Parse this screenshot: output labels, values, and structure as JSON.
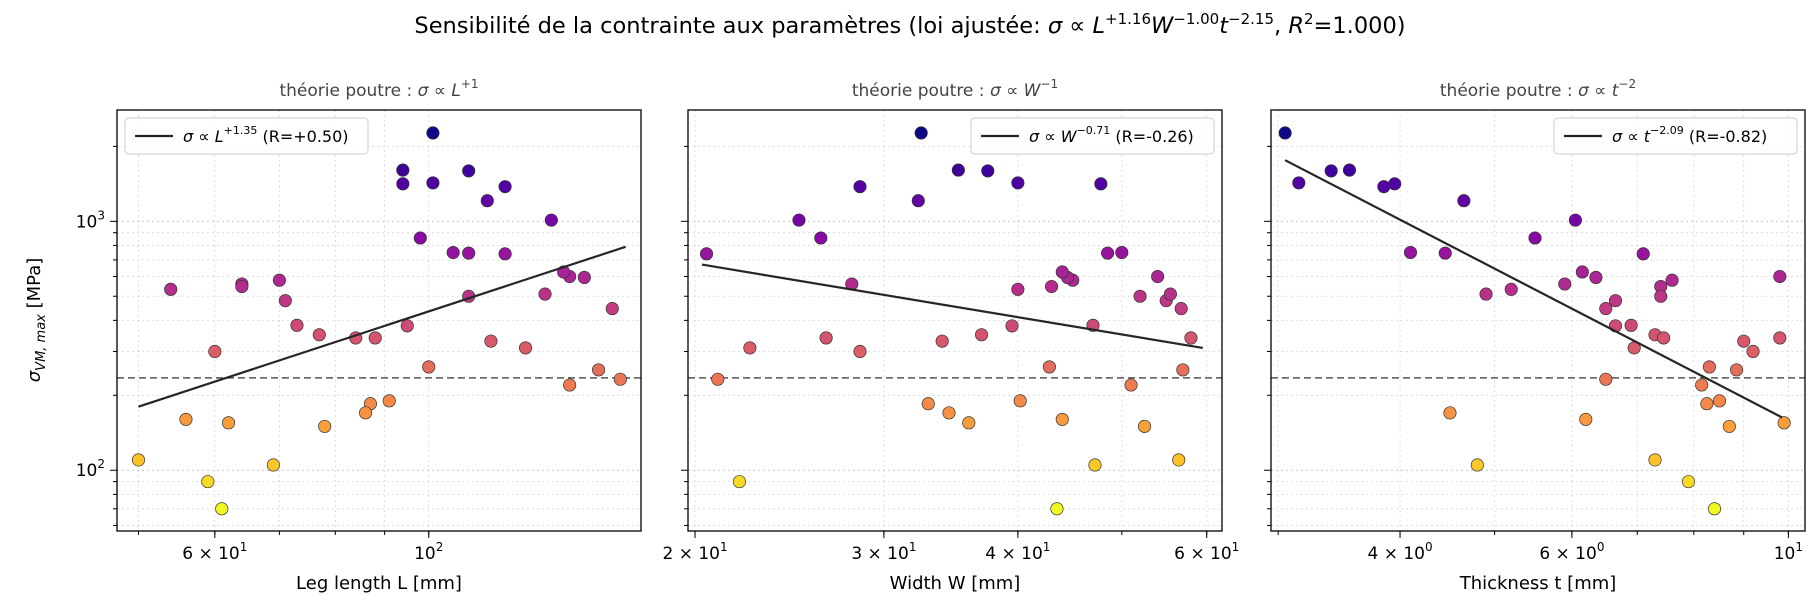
{
  "figure": {
    "suptitle_pre": "Sensibilité de la contrainte aux paramètres   (loi ajustée: ",
    "fit_L_exp": "+1.16",
    "fit_W_exp": "−1.00",
    "fit_t_exp": "−2.15",
    "fit_r2": "=1.000)",
    "ylabel": "σ",
    "ylabel_sub": "VM, max",
    "ylabel_unit": " [MPa]",
    "threshold_mpa": 235,
    "colormap": "plasma",
    "marker_edge": "#333333",
    "fit_line_color": "#262626",
    "threshold_color": "#555555",
    "grid": true,
    "yscale": "log",
    "ylim": [
      57,
      2800
    ],
    "y_ticks": [
      {
        "v": 100,
        "base": "10",
        "exp": "2"
      },
      {
        "v": 1000,
        "base": "10",
        "exp": "3"
      }
    ],
    "sigma_values": [
      2264,
      1606,
      1427,
      1594,
      1414,
      1210,
      1378,
      1011,
      857,
      745,
      740,
      560,
      547,
      533,
      480,
      382,
      300,
      253,
      232,
      220,
      600,
      580,
      500,
      380,
      350,
      340,
      340,
      330,
      310,
      260,
      190,
      185,
      170,
      160,
      155,
      150,
      110,
      105,
      90,
      70,
      595,
      749,
      626,
      510,
      446
    ]
  },
  "chart_data": [
    {
      "type": "scatter",
      "title_pre": "théorie poutre : ",
      "title_var": "L",
      "title_exp": "+1",
      "xlabel": "Leg length L [mm]",
      "xscale": "log",
      "xlim": [
        47.5,
        166
      ],
      "x_ticks": [
        {
          "v": 60,
          "text": "6 × 10",
          "exp": "1"
        },
        {
          "v": 100,
          "text": "10",
          "exp": "2"
        }
      ],
      "x": [
        101,
        94,
        101,
        110,
        94,
        115,
        120,
        134,
        98,
        110,
        120,
        64,
        64,
        54,
        71,
        73,
        60,
        150,
        158,
        140,
        140,
        70,
        110,
        95,
        77,
        88,
        84,
        116,
        126,
        100,
        91,
        87,
        86,
        56,
        62,
        78,
        50,
        69,
        59,
        61,
        145,
        106,
        138,
        132,
        155
      ],
      "fit": {
        "var": "L",
        "exp": "+1.35",
        "r": "(R=+0.50)",
        "x_range": [
          50,
          160
        ],
        "y_at": [
          180,
          790
        ]
      },
      "legend_loc": "upper left"
    },
    {
      "type": "scatter",
      "title_pre": "théorie poutre : ",
      "title_var": "W",
      "title_exp": "−1",
      "xlabel": "Width W [mm]",
      "xscale": "log",
      "xlim": [
        19.7,
        62
      ],
      "x_ticks": [
        {
          "v": 20,
          "text": "2 × 10",
          "exp": "1"
        },
        {
          "v": 30,
          "text": "3 × 10",
          "exp": "1"
        },
        {
          "v": 40,
          "text": "4 × 10",
          "exp": "1"
        },
        {
          "v": 60,
          "text": "6 × 10",
          "exp": "1"
        }
      ],
      "x": [
        32.5,
        35.2,
        40,
        37.5,
        47.8,
        32.3,
        28.5,
        25,
        26.2,
        48.5,
        20.5,
        28,
        43,
        40,
        55,
        47,
        28.5,
        57,
        21,
        51,
        54,
        45,
        52,
        39.5,
        37,
        58,
        26.5,
        34,
        22.5,
        42.8,
        40.2,
        33,
        34.5,
        44,
        36,
        52.5,
        56.5,
        47.2,
        22,
        43.5,
        44.5,
        50,
        44,
        55.5,
        56.8
      ],
      "fit": {
        "var": "W",
        "exp": "−0.71",
        "r": "(R=-0.26)",
        "x_range": [
          20.3,
          59.5
        ],
        "y_at": [
          670,
          310
        ]
      },
      "legend_loc": "upper right"
    },
    {
      "type": "scatter",
      "title_pre": "théorie poutre : ",
      "title_var": "t",
      "title_exp": "−2",
      "xlabel": "Thickness t [mm]",
      "xscale": "log",
      "xlim": [
        2.95,
        10.4
      ],
      "x_ticks": [
        {
          "v": 4,
          "text": "4 × 10",
          "exp": "0"
        },
        {
          "v": 6,
          "text": "6 × 10",
          "exp": "0"
        },
        {
          "v": 10,
          "text": "10",
          "exp": "1"
        }
      ],
      "x": [
        3.05,
        3.55,
        3.15,
        3.4,
        3.95,
        4.65,
        3.85,
        6.05,
        5.5,
        4.45,
        7.1,
        5.9,
        7.4,
        5.2,
        6.65,
        6.9,
        9.2,
        8.85,
        6.5,
        8.15,
        9.8,
        7.6,
        7.4,
        6.65,
        7.3,
        7.45,
        9.8,
        9,
        6.95,
        8.3,
        8.5,
        8.25,
        4.5,
        6.2,
        9.9,
        8.7,
        7.3,
        4.8,
        7.9,
        8.4,
        6.35,
        4.1,
        6.15,
        4.9,
        6.5
      ],
      "fit": {
        "var": "t",
        "exp": "−2.09",
        "r": "(R=-0.82)",
        "x_range": [
          3.05,
          9.85
        ],
        "y_at": [
          1760,
          163
        ]
      },
      "legend_loc": "upper right"
    }
  ]
}
